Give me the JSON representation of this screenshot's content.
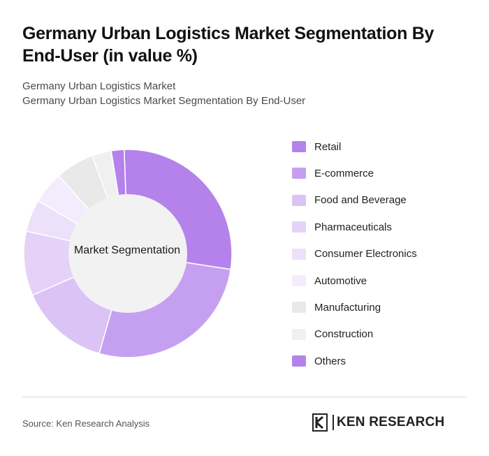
{
  "title": "Germany Urban Logistics Market Segmentation By End-User (in value %)",
  "subtitle_lines": [
    "Germany Urban Logistics Market",
    "Germany Urban Logistics Market Segmentation By End-User"
  ],
  "center_label": "Market Segmentation",
  "source": "Source: Ken Research Analysis",
  "logo_text": "KEN RESEARCH",
  "chart_data": {
    "type": "pie",
    "donut": true,
    "categories": [
      "Retail",
      "E-commerce",
      "Food and Beverage",
      "Pharmaceuticals",
      "Consumer Electronics",
      "Automotive",
      "Manufacturing",
      "Construction",
      "Others"
    ],
    "values": [
      28,
      27,
      14,
      10,
      5,
      5,
      6,
      3,
      2
    ],
    "colors": [
      "#b482ea",
      "#c6a0f0",
      "#dbc3f6",
      "#e4d2f8",
      "#ece0fa",
      "#f3ecfc",
      "#e9e9e9",
      "#f0f0f0",
      "#b482ea"
    ],
    "legend_position": "right",
    "start_angle_deg": -2
  }
}
